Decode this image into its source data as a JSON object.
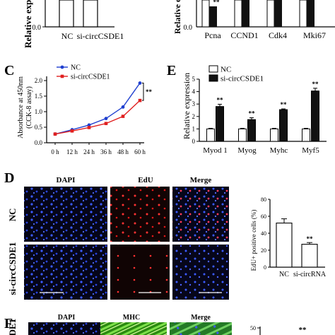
{
  "panel_labels": {
    "C": "C",
    "D": "D",
    "E": "E",
    "F": "F"
  },
  "panel_a": {
    "ylabel": "Relative expression",
    "yticks": [
      "0.0"
    ],
    "categories": [
      "NC",
      "si-circCSDE1"
    ]
  },
  "panel_b": {
    "ylabel": "Relative e",
    "yticks": [
      "0.0"
    ],
    "categories": [
      "Pcna",
      "CCND1",
      "Cdk4",
      "Mki67"
    ],
    "significance": "**"
  },
  "panel_d": {
    "col_headers": [
      "DAPI",
      "EdU",
      "Merge"
    ],
    "row_labels": [
      "NC",
      "si-circCSDE1"
    ]
  },
  "panel_d_bar_sig": "**",
  "panel_f": {
    "col_headers": [
      "DAPI",
      "MHC",
      "Merge"
    ],
    "row_label": "CSDE1",
    "ytick_partial": "50",
    "significance": "**"
  },
  "chart_data": [
    {
      "id": "C",
      "type": "line",
      "x": [
        "0 h",
        "12 h",
        "24 h",
        "36 h",
        "48 h",
        "60 h"
      ],
      "xlabel": "",
      "ylabel": "Absorbance at 450nm\n(CCK-8 assay)",
      "ylim": [
        0.0,
        2.0
      ],
      "yticks": [
        "0.0",
        "0.5",
        "1.0",
        "1.5",
        "2.0"
      ],
      "series": [
        {
          "name": "NC",
          "color": "#1f3fcf",
          "marker": "circle",
          "values": [
            0.28,
            0.42,
            0.57,
            0.78,
            1.15,
            1.92
          ]
        },
        {
          "name": "si-circCSDE1",
          "color": "#e02020",
          "marker": "square",
          "values": [
            0.28,
            0.38,
            0.49,
            0.62,
            0.85,
            1.36
          ]
        }
      ],
      "annotation": "**",
      "legend": "top-left"
    },
    {
      "id": "E",
      "type": "bar",
      "categories": [
        "Myod 1",
        "Myog",
        "Myhc",
        "Myf5"
      ],
      "xlabel": "",
      "ylabel": "Relative expression",
      "ylim": [
        0,
        5
      ],
      "yticks": [
        "0",
        "1",
        "2",
        "3",
        "4",
        "5"
      ],
      "series": [
        {
          "name": "NC",
          "color": "#ffffff",
          "values": [
            1.0,
            1.0,
            1.0,
            1.0
          ],
          "errors": [
            0.05,
            0.05,
            0.05,
            0.05
          ]
        },
        {
          "name": "si-circCSDE1",
          "color": "#111111",
          "values": [
            2.8,
            1.75,
            2.55,
            4.05
          ],
          "errors": [
            0.18,
            0.15,
            0.06,
            0.22
          ]
        }
      ],
      "significance": [
        "**",
        "**",
        "**",
        "**"
      ],
      "legend": "top-left"
    },
    {
      "id": "D-bar",
      "type": "bar",
      "categories": [
        "NC",
        "si-circRNA"
      ],
      "xlabel": "",
      "ylabel": "EdU+ positive cells (%)",
      "ylim": [
        0,
        80
      ],
      "yticks": [
        "0",
        "20",
        "40",
        "60",
        "80"
      ],
      "series": [
        {
          "name": "",
          "colors": [
            "#ffffff",
            "#ffffff"
          ],
          "values": [
            52,
            27
          ],
          "errors": [
            5,
            2
          ]
        }
      ],
      "significance": [
        "",
        "**"
      ]
    }
  ]
}
